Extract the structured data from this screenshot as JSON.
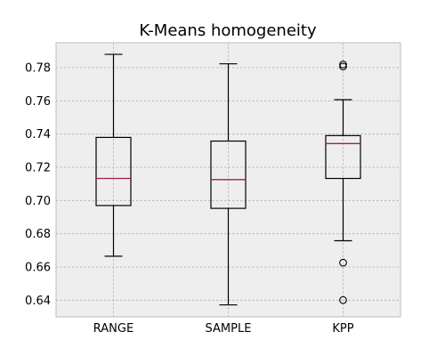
{
  "chart_data": {
    "type": "box",
    "title": "K-Means homogeneity",
    "xlabel": "",
    "ylabel": "",
    "ylim": [
      0.63,
      0.795
    ],
    "yticks": [
      0.64,
      0.66,
      0.68,
      0.7,
      0.72,
      0.74,
      0.76,
      0.78
    ],
    "ytick_labels": [
      "0.64",
      "0.66",
      "0.68",
      "0.70",
      "0.72",
      "0.74",
      "0.76",
      "0.78"
    ],
    "grid": true,
    "categories": [
      "RANGE",
      "SAMPLE",
      "KPP"
    ],
    "boxes": [
      {
        "name": "RANGE",
        "whisker_low": 0.6665,
        "q1": 0.697,
        "median": 0.7133,
        "q3": 0.738,
        "whisker_high": 0.788,
        "outliers": []
      },
      {
        "name": "SAMPLE",
        "whisker_low": 0.6372,
        "q1": 0.6953,
        "median": 0.7126,
        "q3": 0.7358,
        "whisker_high": 0.7823,
        "outliers": []
      },
      {
        "name": "KPP",
        "whisker_low": 0.6758,
        "q1": 0.7133,
        "median": 0.7343,
        "q3": 0.7391,
        "whisker_high": 0.7607,
        "outliers": [
          0.6626,
          0.6401,
          0.7807,
          0.7819
        ]
      }
    ],
    "colors": {
      "background": "#eeeeee",
      "frame": "#bcbcbc",
      "grid": "#b0b0b0",
      "box": "#000000",
      "median": "#a0213e"
    }
  }
}
